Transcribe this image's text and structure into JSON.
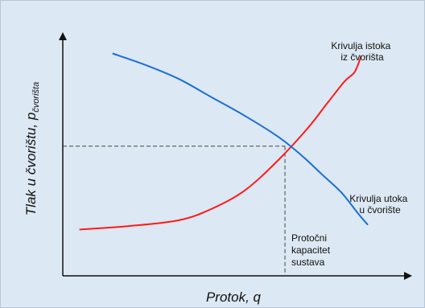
{
  "chart_data": {
    "type": "line",
    "xlabel": "Protok, q",
    "ylabel_main": "Tlak u čvorištu, p",
    "ylabel_sub": "čvorišta",
    "xlim": [
      0,
      100
    ],
    "ylim": [
      0,
      100
    ],
    "grid": false,
    "series": [
      {
        "name_lines": [
          "Krivulja istoka",
          "iz čvorišta"
        ],
        "color": "#ff1a1a",
        "points": [
          [
            5,
            20
          ],
          [
            20,
            21.5
          ],
          [
            35,
            24
          ],
          [
            45,
            29
          ],
          [
            55,
            37
          ],
          [
            65,
            50
          ],
          [
            74,
            64
          ],
          [
            80,
            75
          ],
          [
            85,
            84
          ],
          [
            88,
            88
          ],
          [
            90,
            95
          ]
        ]
      },
      {
        "name_lines": [
          "Krivulja utoka",
          "u čvorište"
        ],
        "color": "#1a6fd6",
        "points": [
          [
            15,
            96
          ],
          [
            25,
            91
          ],
          [
            35,
            85
          ],
          [
            45,
            77
          ],
          [
            55,
            69
          ],
          [
            65,
            60
          ],
          [
            72,
            52
          ],
          [
            78,
            44
          ],
          [
            84,
            36
          ],
          [
            89,
            27
          ],
          [
            92,
            22
          ]
        ]
      }
    ],
    "intersection": {
      "x": 67,
      "y": 56,
      "label_lines": [
        "Protočni",
        "kapacitet",
        "sustava"
      ]
    }
  }
}
